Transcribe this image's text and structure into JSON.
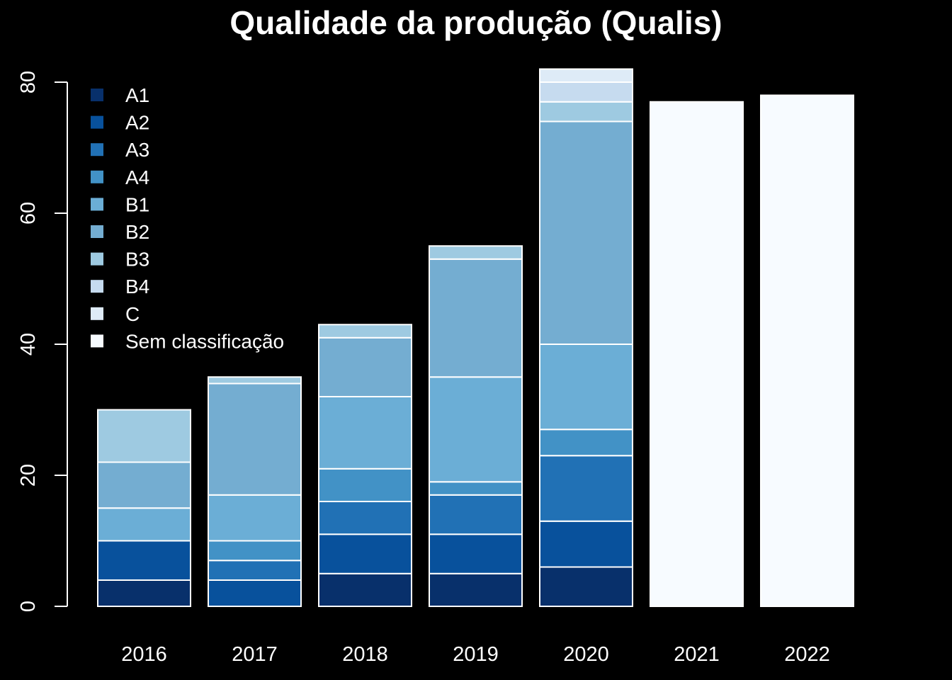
{
  "chart_data": {
    "type": "bar",
    "stacked": true,
    "title": "Qualidade da produção (Qualis)",
    "xlabel": "",
    "ylabel": "",
    "ylim": [
      0,
      80
    ],
    "yticks": [
      0,
      20,
      40,
      60,
      80
    ],
    "categories": [
      "2016",
      "2017",
      "2018",
      "2019",
      "2020",
      "2021",
      "2022"
    ],
    "legend_position": "top-left",
    "grid": false,
    "background": "#000000",
    "foreground": "#ffffff",
    "series": [
      {
        "name": "A1",
        "color": "#08306b",
        "values": [
          4,
          0,
          5,
          5,
          6,
          0,
          0
        ]
      },
      {
        "name": "A2",
        "color": "#08519c",
        "values": [
          6,
          4,
          6,
          6,
          7,
          0,
          0
        ]
      },
      {
        "name": "A3",
        "color": "#2171b5",
        "values": [
          0,
          3,
          5,
          6,
          10,
          0,
          0
        ]
      },
      {
        "name": "A4",
        "color": "#4292c6",
        "values": [
          0,
          3,
          5,
          2,
          4,
          0,
          0
        ]
      },
      {
        "name": "B1",
        "color": "#6baed6",
        "values": [
          5,
          7,
          11,
          16,
          13,
          0,
          0
        ]
      },
      {
        "name": "B2",
        "color": "#74add1",
        "values": [
          7,
          17,
          9,
          18,
          34,
          0,
          0
        ]
      },
      {
        "name": "B3",
        "color": "#9ecae1",
        "values": [
          8,
          1,
          2,
          2,
          3,
          0,
          0
        ]
      },
      {
        "name": "B4",
        "color": "#c6dbef",
        "values": [
          0,
          0,
          0,
          0,
          3,
          0,
          0
        ]
      },
      {
        "name": "C",
        "color": "#deebf7",
        "values": [
          0,
          0,
          0,
          0,
          2,
          0,
          0
        ]
      },
      {
        "name": "Sem classificação",
        "color": "#f7fbff",
        "values": [
          0,
          0,
          0,
          0,
          0,
          77,
          78
        ]
      }
    ]
  }
}
